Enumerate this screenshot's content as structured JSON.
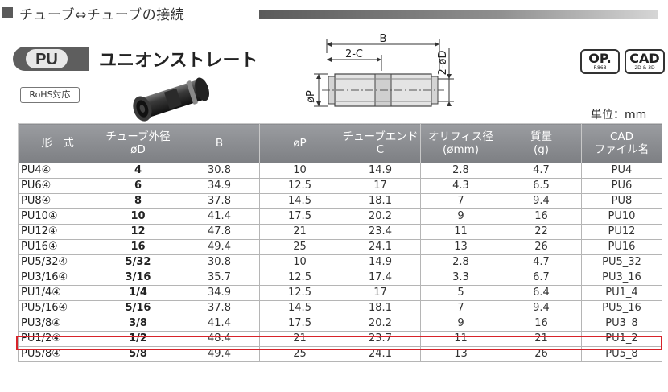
{
  "section": {
    "title": "チューブ⇔チューブの接続"
  },
  "product": {
    "badge": "PU",
    "title": "ユニオンストレート",
    "rohs": "RoHS対応"
  },
  "drawing": {
    "dim_b": "B",
    "dim_2c": "2-C",
    "dim_2od": "2-øD",
    "dim_op": "øP"
  },
  "refs": {
    "op": {
      "main": "OP.",
      "sub": "P.868"
    },
    "cad": {
      "main": "CAD",
      "sub": "2D & 3D"
    }
  },
  "unit": "単位：mm",
  "table": {
    "headers": [
      {
        "line1": "形　式",
        "line2": ""
      },
      {
        "line1": "チューブ外径",
        "line2": "øD"
      },
      {
        "line1": "B",
        "line2": ""
      },
      {
        "line1": "øP",
        "line2": ""
      },
      {
        "line1": "チューブエンド",
        "line2": "C"
      },
      {
        "line1": "オリフィス径",
        "line2": "(ømm)"
      },
      {
        "line1": "質量",
        "line2": "(g)"
      },
      {
        "line1": "CAD",
        "line2": "ファイル名"
      }
    ],
    "rows": [
      {
        "model": "PU4④",
        "od": "4",
        "b": "30.8",
        "op": "10",
        "c": "14.9",
        "orifice": "2.8",
        "mass": "4.7",
        "cad": "PU4"
      },
      {
        "model": "PU6④",
        "od": "6",
        "b": "34.9",
        "op": "12.5",
        "c": "17",
        "orifice": "4.3",
        "mass": "6.5",
        "cad": "PU6"
      },
      {
        "model": "PU8④",
        "od": "8",
        "b": "37.8",
        "op": "14.5",
        "c": "18.1",
        "orifice": "7",
        "mass": "9.4",
        "cad": "PU8"
      },
      {
        "model": "PU10④",
        "od": "10",
        "b": "41.4",
        "op": "17.5",
        "c": "20.2",
        "orifice": "9",
        "mass": "16",
        "cad": "PU10"
      },
      {
        "model": "PU12④",
        "od": "12",
        "b": "47.8",
        "op": "21",
        "c": "23.4",
        "orifice": "11",
        "mass": "22",
        "cad": "PU12"
      },
      {
        "model": "PU16④",
        "od": "16",
        "b": "49.4",
        "op": "25",
        "c": "24.1",
        "orifice": "13",
        "mass": "26",
        "cad": "PU16"
      },
      {
        "model": "PU5/32④",
        "od": "5/32",
        "b": "30.8",
        "op": "10",
        "c": "14.9",
        "orifice": "2.8",
        "mass": "4.7",
        "cad": "PU5_32"
      },
      {
        "model": "PU3/16④",
        "od": "3/16",
        "b": "35.7",
        "op": "12.5",
        "c": "17.4",
        "orifice": "3.3",
        "mass": "6.7",
        "cad": "PU3_16"
      },
      {
        "model": "PU1/4④",
        "od": "1/4",
        "b": "34.9",
        "op": "12.5",
        "c": "17",
        "orifice": "5",
        "mass": "6.4",
        "cad": "PU1_4"
      },
      {
        "model": "PU5/16④",
        "od": "5/16",
        "b": "37.8",
        "op": "14.5",
        "c": "18.1",
        "orifice": "7",
        "mass": "9.4",
        "cad": "PU5_16"
      },
      {
        "model": "PU3/8④",
        "od": "3/8",
        "b": "41.4",
        "op": "17.5",
        "c": "20.2",
        "orifice": "9",
        "mass": "16",
        "cad": "PU3_8"
      },
      {
        "model": "PU1/2④",
        "od": "1/2",
        "b": "48.4",
        "op": "21",
        "c": "23.7",
        "orifice": "11",
        "mass": "21",
        "cad": "PU1_2"
      },
      {
        "model": "PU5/8④",
        "od": "5/8",
        "b": "49.4",
        "op": "25",
        "c": "24.1",
        "orifice": "13",
        "mass": "26",
        "cad": "PU5_8"
      }
    ]
  },
  "colors": {
    "highlight": "#d8232a",
    "header_bg": "#8a8c90",
    "section_bar": "#5a5a5a"
  }
}
